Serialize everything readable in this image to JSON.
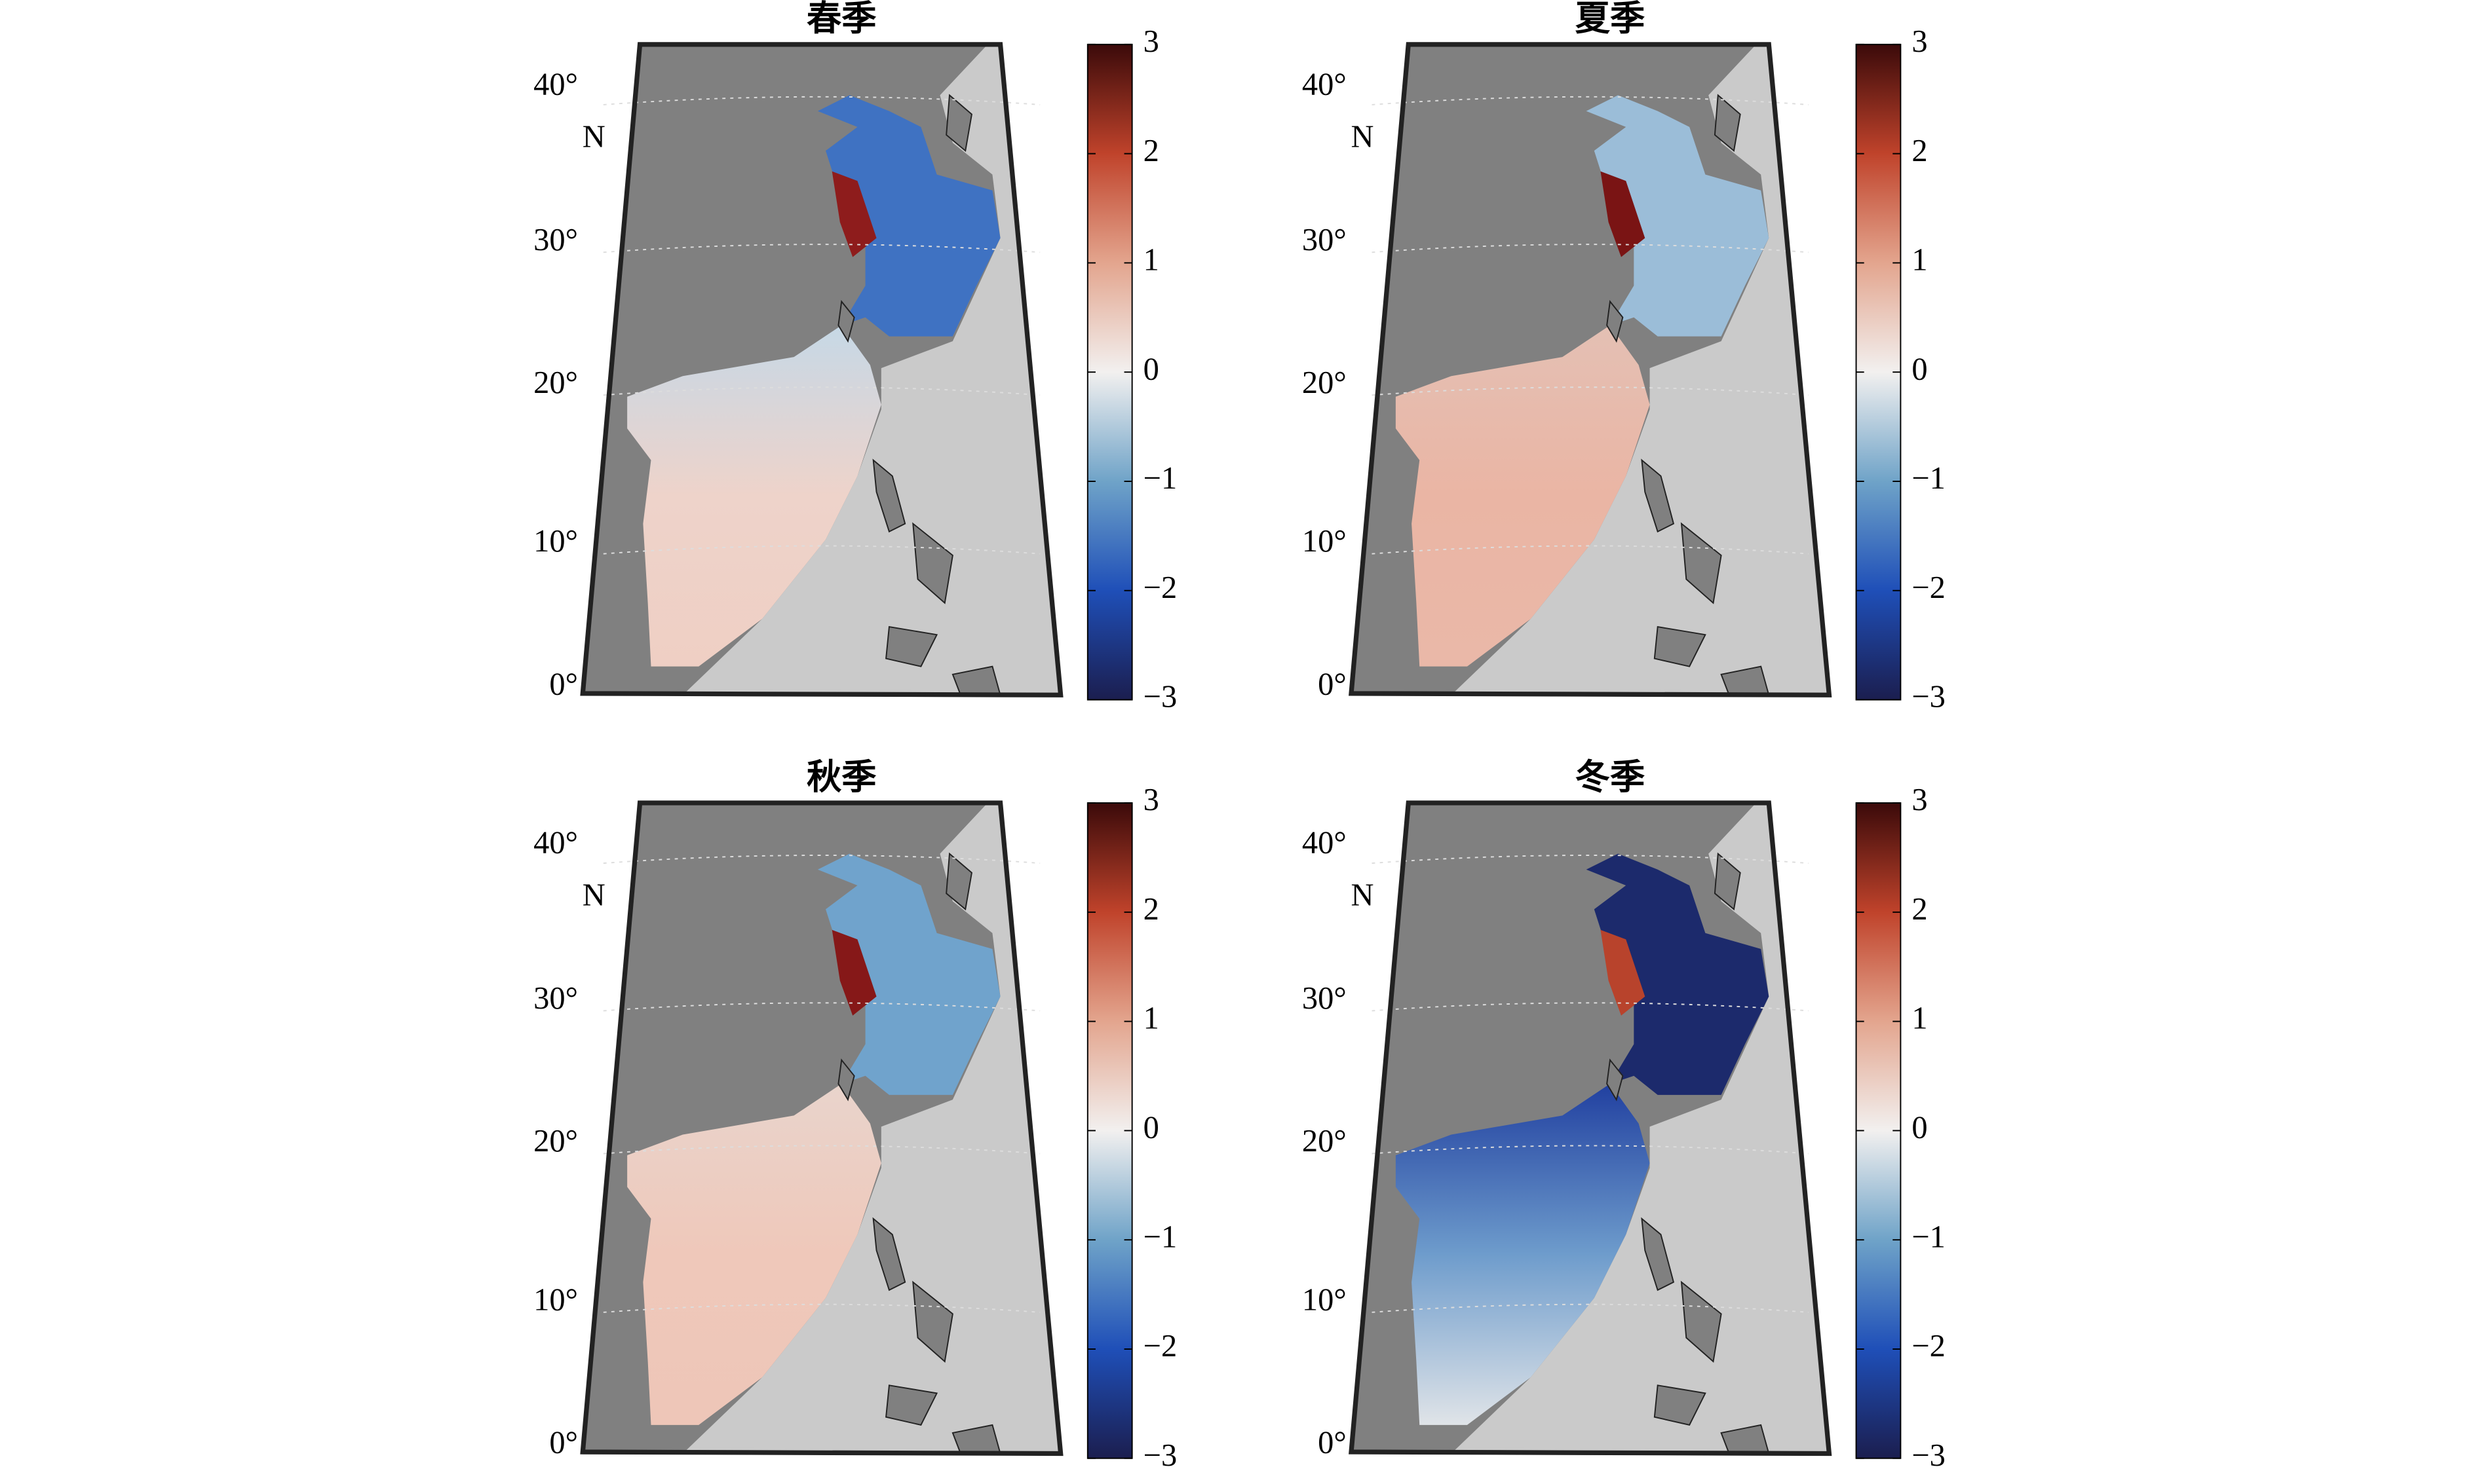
{
  "panels": [
    {
      "title": "春季"
    },
    {
      "title": "夏季"
    },
    {
      "title": "秋季"
    },
    {
      "title": "冬季"
    }
  ],
  "lat_labels": [
    "40°",
    "30°",
    "20°",
    "10°",
    "0°"
  ],
  "lat_unit": "N",
  "colorbar": {
    "range": [
      -3,
      3
    ],
    "ticks": [
      {
        "value": -3,
        "label": "−3"
      },
      {
        "value": -2,
        "label": "−2"
      },
      {
        "value": -1,
        "label": "−1"
      },
      0,
      1,
      2,
      3
    ],
    "colormap": [
      "#1b1e4f",
      "#1f4fb8",
      "#6fa3c8",
      "#f2f0ef",
      "#e3a58e",
      "#c0432b",
      "#3b0a0a"
    ]
  }
}
